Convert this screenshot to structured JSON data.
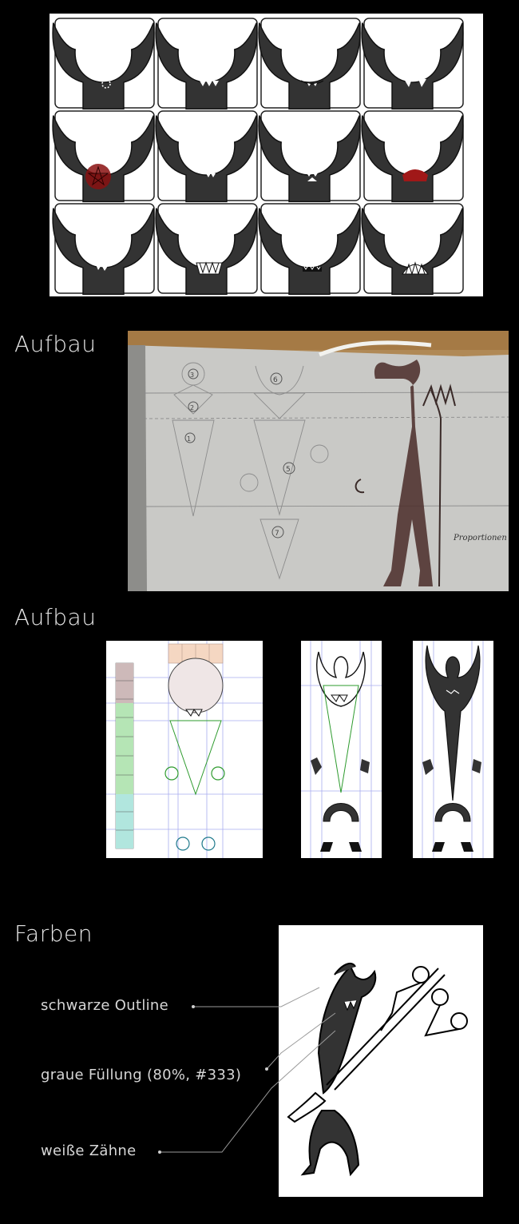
{
  "sections": {
    "aufbau_1": "Aufbau",
    "aufbau_2": "Aufbau",
    "farben": "Farben"
  },
  "colors": {
    "background": "#000000",
    "fill_grey": "#333333",
    "teeth": "#ffffff",
    "pentagram_red": "#9b1111",
    "guide_green": "#2e9b2e",
    "guide_teal": "#1f7a8c",
    "grid_blue": "#8a8fe0"
  },
  "sketch": {
    "numbers": [
      "3",
      "2",
      "1",
      "6",
      "5",
      "7"
    ],
    "note": "Proportionen angenau"
  },
  "farben_legend": [
    {
      "label": "schwarze Outline"
    },
    {
      "label": "graue Füllung (80%, #333)"
    },
    {
      "label": "weiße Zähne"
    }
  ],
  "icons": {
    "mouth_variants": [
      "pentagram-mouth",
      "teeth-mouth",
      "smile-mouth",
      "fangs-mouth",
      "red-pentagram-mouth",
      "small-teeth-mouth",
      "stacked-teeth-mouth",
      "red-mouth",
      "side-teeth-mouth",
      "grin-mouth",
      "wide-teeth-mouth",
      "big-fangs-mouth"
    ]
  }
}
